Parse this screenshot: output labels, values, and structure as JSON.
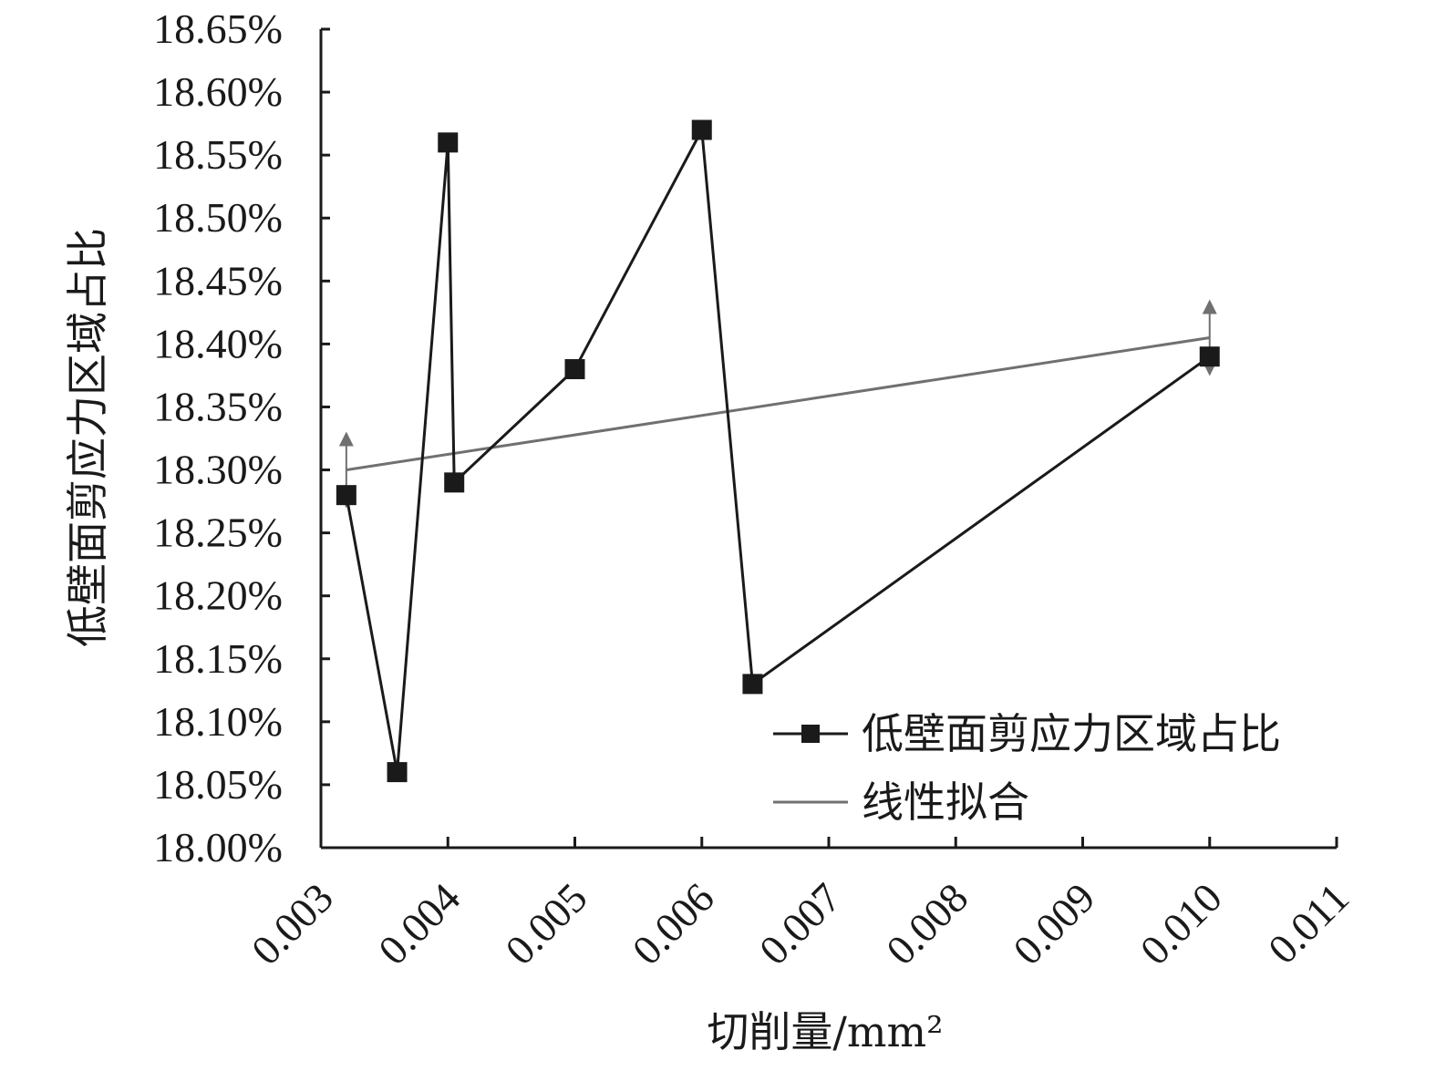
{
  "chart_data": {
    "type": "line",
    "xlabel": "切削量/mm²",
    "ylabel": "低壁面剪应力区域占比",
    "xlim": [
      0.003,
      0.011
    ],
    "ylim": [
      18.0,
      18.65
    ],
    "x_ticks": [
      "0.003",
      "0.004",
      "0.005",
      "0.006",
      "0.007",
      "0.008",
      "0.009",
      "0.010",
      "0.011"
    ],
    "y_ticks": [
      "18.00%",
      "18.05%",
      "18.10%",
      "18.15%",
      "18.20%",
      "18.25%",
      "18.30%",
      "18.35%",
      "18.40%",
      "18.45%",
      "18.50%",
      "18.55%",
      "18.60%",
      "18.65%"
    ],
    "grid": false,
    "legend_position": "lower-right",
    "series": [
      {
        "name": "低壁面剪应力区域占比",
        "marker": "square",
        "color": "#1a1a1a",
        "x": [
          0.0032,
          0.0036,
          0.004,
          0.00405,
          0.005,
          0.006,
          0.0064,
          0.01
        ],
        "y": [
          18.28,
          18.06,
          18.56,
          18.29,
          18.38,
          18.57,
          18.13,
          18.39
        ]
      },
      {
        "name": "线性拟合",
        "marker": "none",
        "color": "#707070",
        "x": [
          0.0032,
          0.01
        ],
        "y": [
          18.3,
          18.405
        ]
      }
    ]
  }
}
